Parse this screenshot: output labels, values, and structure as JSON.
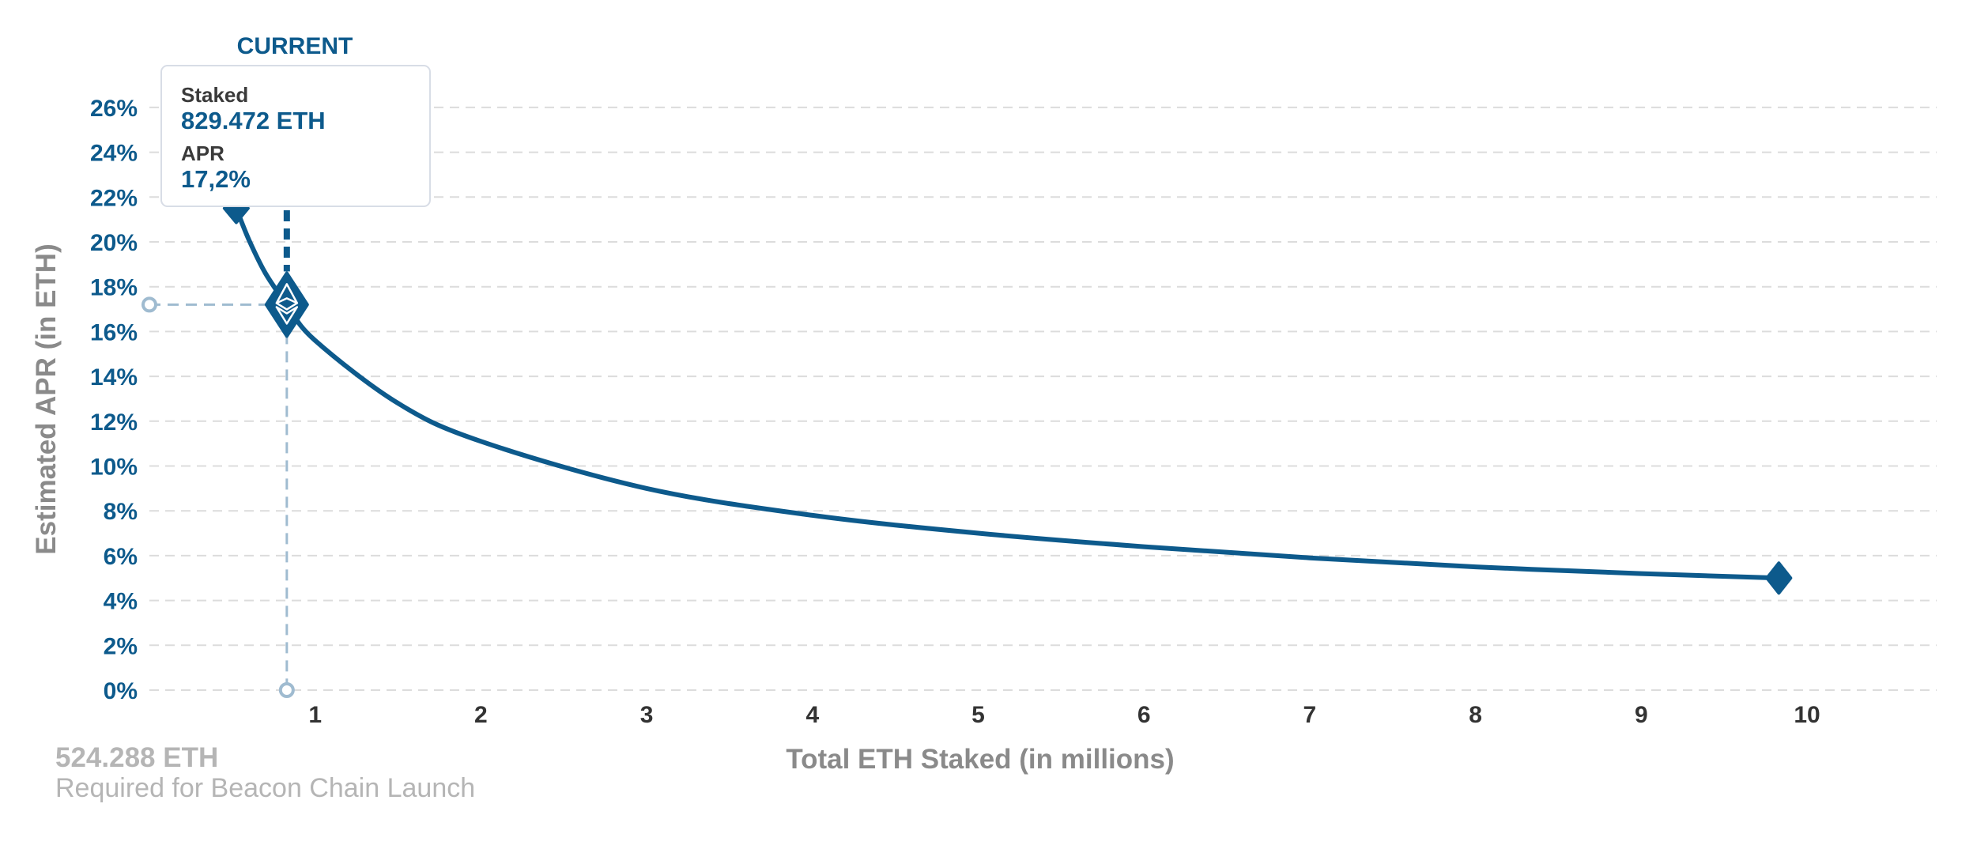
{
  "chart_data": {
    "type": "line",
    "xlabel": "Total ETH Staked  (in millions)",
    "ylabel": "Estimated APR (in ETH)",
    "xlim": [
      0,
      11
    ],
    "ylim": [
      0,
      26
    ],
    "x_ticks": [
      1,
      2,
      3,
      4,
      5,
      6,
      7,
      8,
      9,
      10
    ],
    "y_ticks": [
      0,
      2,
      4,
      6,
      8,
      10,
      12,
      14,
      16,
      18,
      20,
      22,
      24,
      26
    ],
    "y_tick_labels": [
      "0%",
      "2%",
      "4%",
      "6%",
      "8%",
      "10%",
      "12%",
      "14%",
      "16%",
      "18%",
      "20%",
      "22%",
      "24%",
      "26%"
    ],
    "grid": true,
    "series": [
      {
        "points": [
          [
            0.524,
            21.5
          ],
          [
            0.6,
            20.1
          ],
          [
            0.7,
            18.6
          ],
          [
            0.829,
            17.2
          ],
          [
            1.0,
            15.6
          ],
          [
            1.5,
            12.8
          ],
          [
            2,
            11.1
          ],
          [
            3,
            9.0
          ],
          [
            4,
            7.8
          ],
          [
            5,
            7.0
          ],
          [
            6,
            6.4
          ],
          [
            7,
            5.9
          ],
          [
            8,
            5.5
          ],
          [
            9,
            5.2
          ],
          [
            9.83,
            5.0
          ]
        ],
        "color": "#0d5a8c"
      }
    ],
    "markers": {
      "start": [
        0.524,
        21.5
      ],
      "end": [
        9.83,
        5.0
      ],
      "current": [
        0.829,
        17.2
      ]
    }
  },
  "current": {
    "label": "CURRENT",
    "staked_label": "Staked",
    "staked_value": "829.472 ETH",
    "apr_label": "APR",
    "apr_value": "17,2%"
  },
  "launch": {
    "amount": "524.288 ETH",
    "caption": "Required for Beacon Chain Launch"
  },
  "colors": {
    "accent": "#0d5a8c",
    "guide": "#9fbbd0",
    "muted_text": "#8a8a8a"
  }
}
